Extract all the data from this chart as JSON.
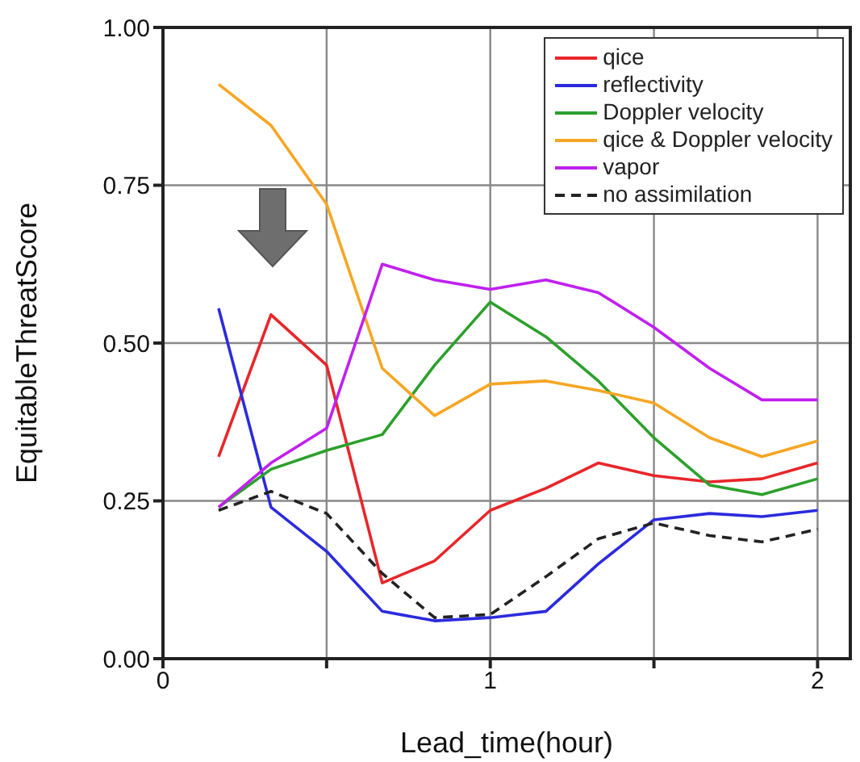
{
  "chart_data": {
    "type": "line",
    "xlabel": "Lead_time(hour)",
    "ylabel": "EquitableThreatScore",
    "x": [
      0.17,
      0.33,
      0.5,
      0.67,
      0.83,
      1,
      1.17,
      1.33,
      1.5,
      1.67,
      1.83,
      2
    ],
    "xlim": [
      0,
      2.1
    ],
    "xticks": [
      0,
      {
        "value": 0.5,
        "label": null
      },
      1,
      {
        "value": 1.5,
        "label": null
      },
      2
    ],
    "ylim": [
      0,
      1
    ],
    "yticks": [
      {
        "value": 0,
        "label": "0.00"
      },
      {
        "value": 0.25,
        "label": "0.25"
      },
      {
        "value": 0.5,
        "label": "0.50"
      },
      {
        "value": 0.75,
        "label": "0.75"
      },
      {
        "value": 1,
        "label": "1.00"
      }
    ],
    "grid": true,
    "legend": "top right",
    "marker": "none",
    "series": [
      {
        "name": "qice",
        "color": "#e8262a",
        "values": [
          0.32,
          0.545,
          0.465,
          0.12,
          0.155,
          0.235,
          0.27,
          0.31,
          0.29,
          0.28,
          0.285,
          0.31
        ]
      },
      {
        "name": "reflectivity",
        "color": "#2b2bdd",
        "values": [
          0.555,
          0.24,
          0.17,
          0.075,
          0.06,
          0.065,
          0.075,
          0.15,
          0.22,
          0.23,
          0.225,
          0.235
        ]
      },
      {
        "name": "Doppler velocity",
        "color": "#2ca02c",
        "values": [
          0.24,
          0.3,
          0.33,
          0.355,
          0.465,
          0.565,
          0.51,
          0.44,
          0.35,
          0.275,
          0.26,
          0.285
        ]
      },
      {
        "name": "qice & Doppler velocity",
        "color": "#f5a623",
        "values": [
          0.91,
          0.845,
          0.72,
          0.46,
          0.385,
          0.435,
          0.44,
          0.425,
          0.405,
          0.35,
          0.32,
          0.345
        ]
      },
      {
        "name": "vapor",
        "color": "#c020f0",
        "values": [
          0.24,
          0.31,
          0.365,
          0.625,
          0.6,
          0.585,
          0.6,
          0.58,
          0.525,
          0.46,
          0.41,
          0.41
        ]
      },
      {
        "name": "no assimilation",
        "color": "#222222",
        "line_style": "dashed",
        "values": [
          0.235,
          0.265,
          0.23,
          0.135,
          0.065,
          0.07,
          0.13,
          0.19,
          0.215,
          0.195,
          0.185,
          0.205
        ]
      }
    ]
  }
}
